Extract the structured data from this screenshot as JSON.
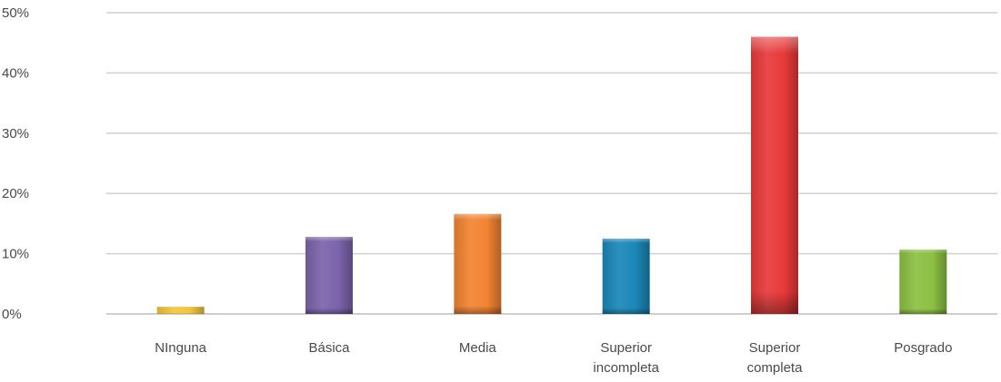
{
  "chart_data": {
    "type": "bar",
    "categories": [
      [
        "NInguna"
      ],
      [
        "Básica"
      ],
      [
        "Media"
      ],
      [
        "Superior",
        "incompleta"
      ],
      [
        "Superior",
        "completa"
      ],
      [
        "Posgrado"
      ]
    ],
    "values": [
      1.2,
      12.8,
      16.6,
      12.5,
      46.0,
      10.7
    ],
    "ylim": [
      0,
      50
    ],
    "yticks": [
      "0%",
      "10%",
      "20%",
      "30%",
      "40%",
      "50%"
    ],
    "ytick_values": [
      0,
      10,
      20,
      30,
      40,
      50
    ],
    "grid": true,
    "title": "",
    "xlabel": "",
    "ylabel": "",
    "colors": [
      "#f2c53d",
      "#7b64ab",
      "#f28432",
      "#1a87b8",
      "#e8393a",
      "#8cc043"
    ]
  }
}
